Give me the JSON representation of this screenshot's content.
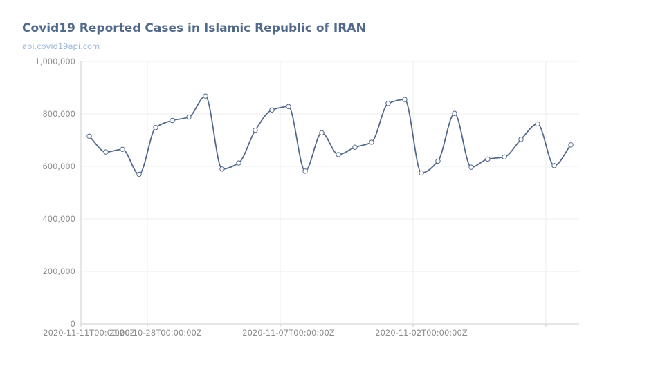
{
  "chart_data": {
    "type": "line",
    "title": "Covid19 Reported Cases in Islamic Republic of IRAN",
    "subtitle": "api.covid19api.com",
    "xlabel": "",
    "ylabel": "",
    "ylim": [
      0,
      1000000
    ],
    "yticks": [
      "0",
      "200,000",
      "400,000",
      "600,000",
      "800,000",
      "1,000,000"
    ],
    "x_tick_labels": [
      {
        "index": 0,
        "label": "2020-11-11T00:00:00Z"
      },
      {
        "index": 4,
        "label": "2020-10-28T00:00:00Z"
      },
      {
        "index": 12,
        "label": "2020-11-07T00:00:00Z"
      },
      {
        "index": 20,
        "label": "2020-11-02T00:00:00Z"
      },
      {
        "index": 28,
        "label": ""
      }
    ],
    "grid": true,
    "legend": "none",
    "colors": {
      "line": "#52698c",
      "grid": "#ececec",
      "axis": "#cccccc",
      "title": "#52698c",
      "subtitle": "#9bb6d9",
      "tick": "#8c8c8c"
    },
    "series": [
      {
        "values": [
          715000,
          655000,
          665000,
          570000,
          748000,
          775000,
          788000,
          868000,
          590000,
          613000,
          738000,
          815000,
          828000,
          582000,
          728000,
          645000,
          673000,
          692000,
          840000,
          855000,
          575000,
          620000,
          802000,
          597000,
          628000,
          636000,
          703000,
          762000,
          603000,
          682000
        ]
      }
    ]
  }
}
